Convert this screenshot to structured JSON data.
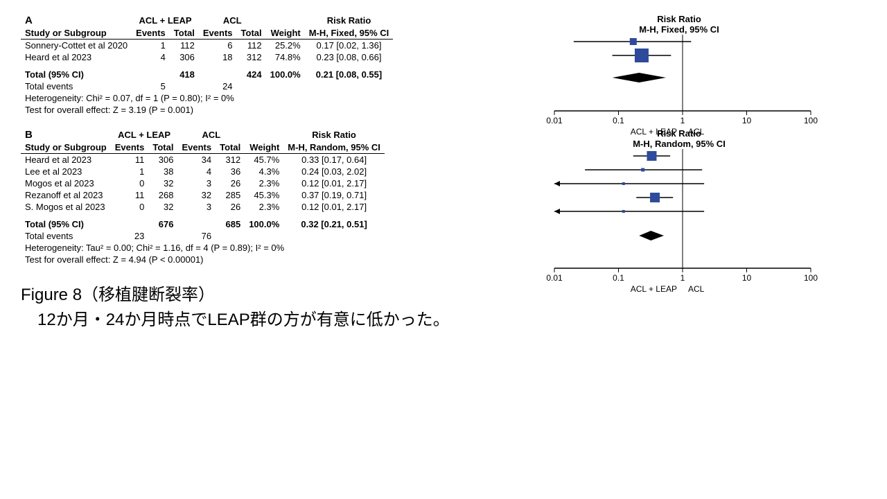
{
  "colors": {
    "marker": "#2e4b9b",
    "diamond": "#000000",
    "axis": "#000000",
    "text": "#000000"
  },
  "axis": {
    "ticks": [
      0.01,
      0.1,
      1,
      10,
      100
    ],
    "left_label": "ACL + LEAP",
    "right_label": "ACL"
  },
  "panelA": {
    "label": "A",
    "group1": "ACL + LEAP",
    "group2": "ACL",
    "effect_header_top": "Risk Ratio",
    "effect_header_bottom": "M-H, Fixed, 95% CI",
    "plot_header_top": "Risk Ratio",
    "plot_header_bottom": "M-H, Fixed, 95% CI",
    "col_study": "Study or Subgroup",
    "col_events": "Events",
    "col_total": "Total",
    "col_weight": "Weight",
    "rows": [
      {
        "study": "Sonnery-Cottet et al 2020",
        "e1": 1,
        "t1": 112,
        "e2": 6,
        "t2": 112,
        "w": "25.2%",
        "rr": "0.17 [0.02, 1.36]",
        "pt": 0.17,
        "lo": 0.02,
        "hi": 1.36,
        "size": 10
      },
      {
        "study": "Heard et al 2023",
        "e1": 4,
        "t1": 306,
        "e2": 18,
        "t2": 312,
        "w": "74.8%",
        "rr": "0.23 [0.08, 0.66]",
        "pt": 0.23,
        "lo": 0.08,
        "hi": 0.66,
        "size": 20
      }
    ],
    "total_label": "Total (95% CI)",
    "total_t1": 418,
    "total_t2": 424,
    "total_w": "100.0%",
    "total_rr": "0.21 [0.08, 0.55]",
    "d_pt": 0.21,
    "d_lo": 0.08,
    "d_hi": 0.55,
    "total_events_label": "Total events",
    "total_e1": 5,
    "total_e2": 24,
    "het": "Heterogeneity: Chi² = 0.07, df = 1 (P = 0.80); I² = 0%",
    "test": "Test for overall effect: Z = 3.19 (P = 0.001)"
  },
  "panelB": {
    "label": "B",
    "group1": "ACL + LEAP",
    "group2": "ACL",
    "effect_header_top": "Risk Ratio",
    "effect_header_bottom": "M-H, Random, 95% CI",
    "plot_header_top": "Risk Ratio",
    "plot_header_bottom": "M-H, Random, 95% CI",
    "col_study": "Study or Subgroup",
    "col_events": "Events",
    "col_total": "Total",
    "col_weight": "Weight",
    "rows": [
      {
        "study": "Heard et al 2023",
        "e1": 11,
        "t1": 306,
        "e2": 34,
        "t2": 312,
        "w": "45.7%",
        "rr": "0.33 [0.17, 0.64]",
        "pt": 0.33,
        "lo": 0.17,
        "hi": 0.64,
        "size": 14
      },
      {
        "study": "Lee et al 2023",
        "e1": 1,
        "t1": 38,
        "e2": 4,
        "t2": 36,
        "w": "4.3%",
        "rr": "0.24 [0.03, 2.02]",
        "pt": 0.24,
        "lo": 0.03,
        "hi": 2.02,
        "size": 5
      },
      {
        "study": "Mogos et al 2023",
        "e1": 0,
        "t1": 32,
        "e2": 3,
        "t2": 26,
        "w": "2.3%",
        "rr": "0.12 [0.01, 2.17]",
        "pt": 0.12,
        "lo": 0.01,
        "hi": 2.17,
        "size": 4,
        "arrow_left": true
      },
      {
        "study": "Rezanoff et al 2023",
        "e1": 11,
        "t1": 268,
        "e2": 32,
        "t2": 285,
        "w": "45.3%",
        "rr": "0.37 [0.19, 0.71]",
        "pt": 0.37,
        "lo": 0.19,
        "hi": 0.71,
        "size": 14
      },
      {
        "study": "S. Mogos et al 2023",
        "e1": 0,
        "t1": 32,
        "e2": 3,
        "t2": 26,
        "w": "2.3%",
        "rr": "0.12 [0.01, 2.17]",
        "pt": 0.12,
        "lo": 0.01,
        "hi": 2.17,
        "size": 4,
        "arrow_left": true
      }
    ],
    "total_label": "Total (95% CI)",
    "total_t1": 676,
    "total_t2": 685,
    "total_w": "100.0%",
    "total_rr": "0.32 [0.21, 0.51]",
    "d_pt": 0.32,
    "d_lo": 0.21,
    "d_hi": 0.51,
    "total_events_label": "Total events",
    "total_e1": 23,
    "total_e2": 76,
    "het": "Heterogeneity: Tau² = 0.00; Chi² = 1.16, df = 4 (P = 0.89); I² = 0%",
    "test": "Test for overall effect: Z = 4.94 (P < 0.00001)"
  },
  "caption_line1": "Figure 8（移植腱断裂率）",
  "caption_line2": "　12か月・24か月時点でLEAP群の方が有意に低かった。"
}
